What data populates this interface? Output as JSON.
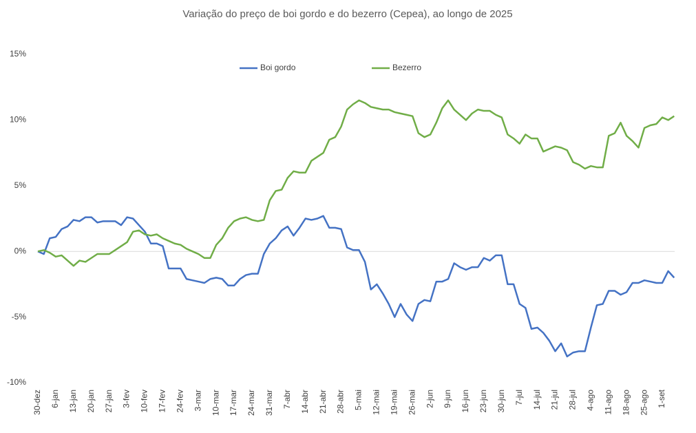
{
  "chart_data": {
    "type": "line",
    "title": "Variação do preço de boi gordo  e do bezerro (Cepea), ao longo de 2025",
    "categories": [
      "30-dez",
      null,
      null,
      "6-jan",
      null,
      null,
      "13-jan",
      null,
      null,
      "20-jan",
      null,
      null,
      "27-jan",
      null,
      null,
      "3-fev",
      null,
      null,
      "10-fev",
      null,
      null,
      "17-fev",
      null,
      null,
      "24-fev",
      null,
      null,
      "3-mar",
      null,
      null,
      "10-mar",
      null,
      null,
      "17-mar",
      null,
      null,
      "24-mar",
      null,
      null,
      "31-mar",
      null,
      null,
      "7-abr",
      null,
      null,
      "14-abr",
      null,
      null,
      "21-abr",
      null,
      null,
      "28-abr",
      null,
      null,
      "5-mai",
      null,
      null,
      "12-mai",
      null,
      null,
      "19-mai",
      null,
      null,
      "26-mai",
      null,
      null,
      "2-jun",
      null,
      null,
      "9-jun",
      null,
      null,
      "16-jun",
      null,
      null,
      "23-jun",
      null,
      null,
      "30-jun",
      null,
      null,
      "7-jul",
      null,
      null,
      "14-jul",
      null,
      null,
      "21-jul",
      null,
      null,
      "28-jul",
      null,
      null,
      "4-ago",
      null,
      null,
      "11-ago",
      null,
      null,
      "18-ago",
      null,
      null,
      "25-ago",
      null,
      null,
      "1-set",
      null,
      null
    ],
    "series": [
      {
        "name": "Boi gordo",
        "color": "#4472c4",
        "values": [
          0,
          -0.2,
          1.0,
          1.1,
          1.7,
          1.9,
          2.4,
          2.3,
          2.6,
          2.6,
          2.2,
          2.3,
          2.3,
          2.3,
          2.0,
          2.6,
          2.5,
          2.0,
          1.5,
          0.6,
          0.6,
          0.4,
          -1.3,
          -1.3,
          -1.3,
          -2.1,
          -2.2,
          -2.3,
          -2.4,
          -2.1,
          -2.0,
          -2.1,
          -2.6,
          -2.6,
          -2.1,
          -1.8,
          -1.7,
          -1.7,
          -0.2,
          0.6,
          1.0,
          1.6,
          1.9,
          1.2,
          1.8,
          2.5,
          2.4,
          2.5,
          2.7,
          1.8,
          1.8,
          1.7,
          0.3,
          0.1,
          0.1,
          -0.8,
          -2.9,
          -2.5,
          -3.2,
          -4.0,
          -5.0,
          -4.0,
          -4.8,
          -5.3,
          -4.0,
          -3.7,
          -3.8,
          -2.3,
          -2.3,
          -2.1,
          -0.9,
          -1.2,
          -1.4,
          -1.2,
          -1.2,
          -0.5,
          -0.7,
          -0.3,
          -0.3,
          -2.5,
          -2.5,
          -4.0,
          -4.3,
          -5.9,
          -5.8,
          -6.2,
          -6.8,
          -7.6,
          -7.0,
          -8.0,
          -7.7,
          -7.6,
          -7.6,
          -5.8,
          -4.1,
          -4.0,
          -3.0,
          -3.0,
          -3.3,
          -3.1,
          -2.4,
          -2.4,
          -2.2,
          -2.3,
          -2.4,
          -2.4,
          -1.5,
          -2.0
        ]
      },
      {
        "name": "Bezerro",
        "color": "#70ad47",
        "values": [
          0,
          0.1,
          -0.1,
          -0.4,
          -0.3,
          -0.7,
          -1.1,
          -0.7,
          -0.8,
          -0.5,
          -0.2,
          -0.2,
          -0.2,
          0.1,
          0.4,
          0.7,
          1.5,
          1.6,
          1.3,
          1.2,
          1.3,
          1.0,
          0.8,
          0.6,
          0.5,
          0.2,
          0.0,
          -0.2,
          -0.5,
          -0.5,
          0.5,
          1.0,
          1.8,
          2.3,
          2.5,
          2.6,
          2.4,
          2.3,
          2.4,
          3.9,
          4.6,
          4.7,
          5.6,
          6.1,
          6.0,
          6.0,
          6.9,
          7.2,
          7.5,
          8.5,
          8.7,
          9.5,
          10.8,
          11.2,
          11.5,
          11.3,
          11.0,
          10.9,
          10.8,
          10.8,
          10.6,
          10.5,
          10.4,
          10.3,
          9.0,
          8.7,
          8.9,
          9.8,
          10.9,
          11.5,
          10.8,
          10.4,
          10.0,
          10.5,
          10.8,
          10.7,
          10.7,
          10.4,
          10.2,
          8.9,
          8.6,
          8.2,
          8.9,
          8.6,
          8.6,
          7.6,
          7.8,
          8.0,
          7.9,
          7.7,
          6.8,
          6.6,
          6.3,
          6.5,
          6.4,
          6.4,
          8.8,
          9.0,
          9.8,
          8.8,
          8.4,
          7.9,
          9.4,
          9.6,
          9.7,
          10.2,
          10.0,
          10.3
        ]
      }
    ],
    "ylim": [
      -10,
      15
    ],
    "yticks": [
      {
        "value": -10,
        "label": "-10%"
      },
      {
        "value": -5,
        "label": "-5%"
      },
      {
        "value": 0,
        "label": "0%"
      },
      {
        "value": 5,
        "label": "5%"
      },
      {
        "value": 10,
        "label": "10%"
      },
      {
        "value": 15,
        "label": "15%"
      }
    ],
    "legend": "top",
    "grid": false
  }
}
